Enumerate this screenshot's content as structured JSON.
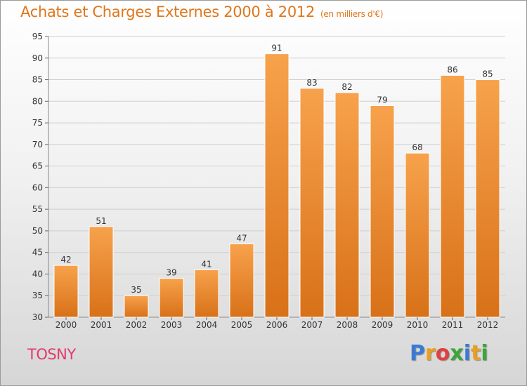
{
  "header": {
    "title": "Achats et Charges Externes 2000 à 2012",
    "unit": "(en milliers d'€)"
  },
  "footer": {
    "commune": "TOSNY",
    "logo": {
      "letters": [
        "P",
        "r",
        "o",
        "x",
        "i",
        "t",
        "i"
      ],
      "colors": [
        "#3a7ad6",
        "#e8a020",
        "#e04040",
        "#3aa63a",
        "#3a7ad6",
        "#e8a020",
        "#3aa63a"
      ]
    }
  },
  "colors": {
    "bar_top": "#f7a24c",
    "bar_bottom": "#d87118",
    "text": "#333333"
  },
  "chart_data": {
    "type": "bar",
    "categories": [
      "2000",
      "2001",
      "2002",
      "2003",
      "2004",
      "2005",
      "2006",
      "2007",
      "2008",
      "2009",
      "2010",
      "2011",
      "2012"
    ],
    "values": [
      42,
      51,
      35,
      39,
      41,
      47,
      91,
      83,
      82,
      79,
      68,
      86,
      85
    ],
    "data_labels": [
      "42",
      "51",
      "35",
      "39",
      "41",
      "47",
      "91",
      "83",
      "82",
      "79",
      "68",
      "86",
      "85"
    ],
    "y_ticks": [
      "30",
      "35",
      "40",
      "45",
      "50",
      "55",
      "60",
      "65",
      "70",
      "75",
      "80",
      "85",
      "90",
      "95"
    ],
    "ylim": [
      30,
      95
    ],
    "grid": true,
    "legend": "none"
  }
}
